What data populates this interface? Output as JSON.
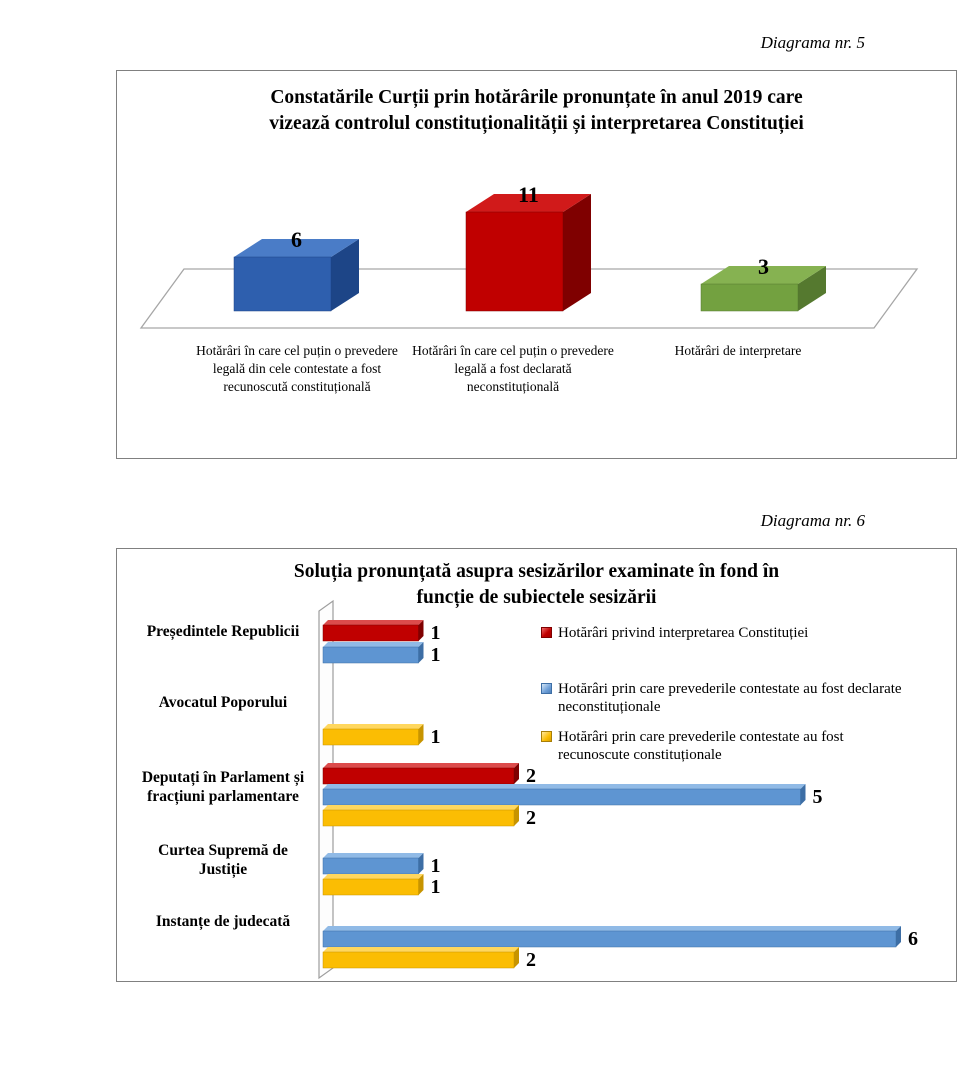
{
  "document": {
    "captions": [
      "Diagrama nr. 5",
      "Diagrama nr. 6"
    ]
  },
  "chart_data": [
    {
      "type": "bar",
      "variant": "3d-column",
      "title": "Constatările Curții prin hotărârile pronunțate în anul 2019 care vizează controlul constituționalității și interpretarea Constituției",
      "title_lines": [
        "Constatările Curții prin hotărârile pronunțate în anul 2019 care",
        "vizează controlul constituționalității și interpretarea Constituției"
      ],
      "categories": [
        "Hotărâri în care cel puțin o prevedere legală din cele contestate a fost recunoscută constituțională",
        "Hotărâri în care cel puțin o prevedere legală a fost declarată neconstituțională",
        "Hotărâri de interpretare"
      ],
      "values": [
        6,
        11,
        3
      ],
      "data_labels_shown": true,
      "axes_shown": false,
      "legend": "none",
      "colors": [
        {
          "front": "#2E5FAE",
          "top": "#4A7CC7",
          "side": "#1D4587"
        },
        {
          "front": "#C00000",
          "top": "#D11A1A",
          "side": "#7F0000"
        },
        {
          "front": "#73A140",
          "top": "#86B251",
          "side": "#55792F"
        }
      ]
    },
    {
      "type": "bar",
      "variant": "3d-horizontal-clustered",
      "title": "Soluția pronunțată asupra sesizărilor examinate în fond în funcție de subiectele sesizării",
      "title_lines": [
        "Soluția pronunțată asupra sesizărilor examinate în fond în",
        "funcție de subiectele sesizării"
      ],
      "categories": [
        "Președintele Republicii",
        "Avocatul Poporului",
        "Deputați în Parlament și fracțiuni parlamentare",
        "Curtea Supremă de Justiție",
        "Instanțe de judecată"
      ],
      "series": [
        {
          "name": "Hotărâri privind interpretarea Constituției",
          "color": {
            "front": "#C00000",
            "top": "#DC4B4B",
            "side": "#7F0000"
          },
          "values": [
            1,
            null,
            2,
            null,
            null
          ]
        },
        {
          "name": "Hotărâri prin care prevederile contestate au fost declarate neconstituționale",
          "color": {
            "front": "#5E95D2",
            "top": "#90BAE6",
            "side": "#3D6EA5"
          },
          "values": [
            1,
            null,
            5,
            1,
            6
          ]
        },
        {
          "name": "Hotărâri prin care prevederile contestate au fost recunoscute constituționale",
          "color": {
            "front": "#FBBD03",
            "top": "#FFD75E",
            "side": "#C79400"
          },
          "values": [
            null,
            1,
            2,
            1,
            2
          ]
        }
      ],
      "xlim": [
        0,
        6.5
      ],
      "legend_position": "right",
      "data_labels_shown": true
    }
  ]
}
